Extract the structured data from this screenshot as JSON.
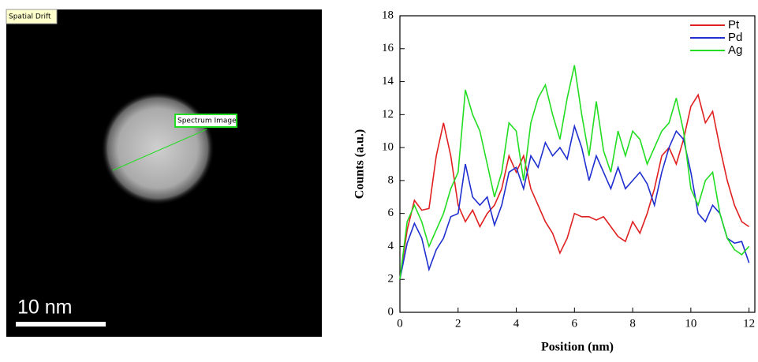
{
  "image": {
    "drift_label": "Spatial Drift",
    "roi_label": "Spectrum Image",
    "scale_label": "10 nm"
  },
  "chart_data": {
    "type": "line",
    "x_label": "Position (nm)",
    "y_label": "Counts (a.u.)",
    "x": [
      0,
      0.25,
      0.5,
      0.75,
      1,
      1.25,
      1.5,
      1.75,
      2,
      2.25,
      2.5,
      2.75,
      3,
      3.25,
      3.5,
      3.75,
      4,
      4.25,
      4.5,
      4.75,
      5,
      5.25,
      5.5,
      5.75,
      6,
      6.25,
      6.5,
      6.75,
      7,
      7.25,
      7.5,
      7.75,
      8,
      8.25,
      8.5,
      8.75,
      9,
      9.25,
      9.5,
      9.75,
      10,
      10.25,
      10.5,
      10.75,
      11,
      11.25,
      11.5,
      11.75,
      12
    ],
    "series": [
      {
        "name": "Pt",
        "color": "#e02020",
        "values": [
          2,
          5,
          6.8,
          6.2,
          6.3,
          9.5,
          11.5,
          9.5,
          6.5,
          5.5,
          6.2,
          5.2,
          6,
          6.5,
          7.5,
          9.5,
          8.5,
          9.5,
          7.5,
          6.5,
          5.5,
          4.8,
          3.6,
          4.5,
          6,
          5.8,
          5.8,
          5.6,
          5.8,
          5.2,
          4.6,
          4.3,
          5.5,
          4.8,
          6,
          7.5,
          9.5,
          10,
          9,
          10.5,
          12.5,
          13.2,
          11.5,
          12.2,
          10,
          8,
          6.5,
          5.5,
          5.2
        ]
      },
      {
        "name": "Pd",
        "color": "#1f2fd0",
        "values": [
          2,
          4.2,
          5.4,
          4.5,
          2.6,
          3.8,
          4.5,
          5.8,
          6,
          9,
          7,
          6.5,
          7,
          5.3,
          6.5,
          8.5,
          8.8,
          7.5,
          9.5,
          8.8,
          10.3,
          9.5,
          10,
          9.3,
          11.3,
          10,
          8,
          9.5,
          8.5,
          7.5,
          8.8,
          7.5,
          8,
          8.5,
          7.8,
          6.5,
          8.5,
          10,
          11,
          10.5,
          8.5,
          6,
          5.5,
          6.5,
          6,
          4.5,
          4.2,
          4.3,
          3
        ]
      },
      {
        "name": "Ag",
        "color": "#22dd22",
        "values": [
          2,
          5.5,
          6.5,
          5.5,
          4,
          5,
          6,
          7.5,
          8.5,
          13.5,
          12,
          11,
          9,
          7,
          8.5,
          11.5,
          11,
          8,
          11.5,
          13,
          13.8,
          12,
          10.5,
          13,
          15,
          12,
          9.5,
          12.8,
          9.8,
          8.5,
          11,
          9.5,
          11,
          10.5,
          9,
          10,
          11,
          11.5,
          13,
          11,
          7.5,
          6.5,
          8,
          8.5,
          6,
          4.5,
          3.8,
          3.5,
          4
        ]
      }
    ],
    "xlim": [
      0,
      12.2
    ],
    "ylim": [
      0,
      18
    ],
    "xticks": [
      0,
      2,
      4,
      6,
      8,
      10,
      12
    ],
    "yticks": [
      0,
      2,
      4,
      6,
      8,
      10,
      12,
      14,
      16,
      18
    ],
    "legend": "upper right"
  }
}
